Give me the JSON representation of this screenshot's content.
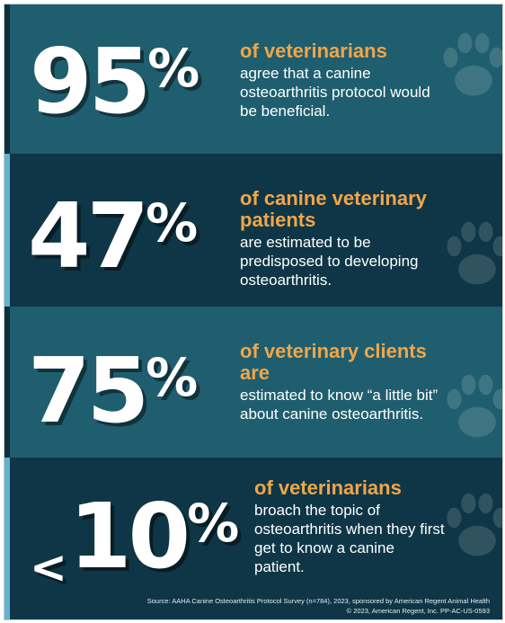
{
  "stats": [
    {
      "number": "95",
      "percent": "%",
      "prefix": "",
      "headline": "of veterinarians",
      "body": "agree that a canine osteoarthritis protocol would be beneficial."
    },
    {
      "number": "47",
      "percent": "%",
      "prefix": "",
      "headline": "of canine veterinary patients",
      "body": "are estimated to be predisposed to developing osteoarthritis."
    },
    {
      "number": "75",
      "percent": "%",
      "prefix": "",
      "headline": "of veterinary clients are",
      "body": "estimated to know “a little bit” about canine osteoarthritis."
    },
    {
      "number": "10",
      "percent": "%",
      "prefix": "<",
      "headline": "of veterinarians",
      "body": "broach the topic of osteoarthritis when they first get to know a canine patient."
    }
  ],
  "footer": {
    "source": "Source: AAHA Canine Osteoarthritis Protocol Survey (n=784), 2023, sponsored by American Regent Animal Health",
    "copyright": "© 2023, American Regent, Inc. PP-AC-US-0593"
  },
  "colors": {
    "panel_light": "#1f5e6e",
    "panel_dark": "#0f3646",
    "accent_blue": "#5fb4cf",
    "headline_orange": "#f0a64a",
    "text_white": "#ffffff"
  },
  "icons": [
    "paw-print-icon"
  ]
}
